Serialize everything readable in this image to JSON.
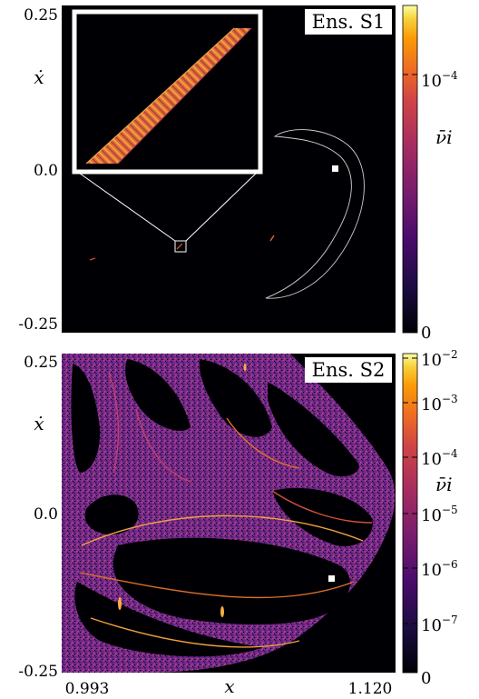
{
  "chart_data": [
    {
      "type": "heatmap",
      "title": "Ens. S1",
      "xlabel": "",
      "ylabel": "ẋ",
      "yticks": [
        "0.25",
        "0.0",
        "-0.25"
      ],
      "ylim": [
        -0.25,
        0.25
      ],
      "colorbar": {
        "label": "ν̄i",
        "scale": "log",
        "tick_labels": [
          {
            "value": 0.0001,
            "base": "10",
            "exp": "−4"
          },
          {
            "value": 0,
            "base": "0",
            "exp": ""
          }
        ]
      },
      "inset": "zoomed view of boxed region near (x≈1.02, ẋ≈-0.11)",
      "marker": {
        "x": 1.1,
        "y": 0.0
      }
    },
    {
      "type": "heatmap",
      "title": "Ens. S2",
      "xlabel": "x",
      "ylabel": "ẋ",
      "xticks": [
        "0.993",
        "1.120"
      ],
      "xlim": [
        0.993,
        1.12
      ],
      "yticks": [
        "0.25",
        "0.0",
        "-0.25"
      ],
      "ylim": [
        -0.25,
        0.25
      ],
      "colorbar": {
        "label": "ν̄i",
        "scale": "log",
        "tick_labels": [
          {
            "value": 0.01,
            "base": "10",
            "exp": "−2"
          },
          {
            "value": 0.001,
            "base": "10",
            "exp": "−3"
          },
          {
            "value": 0.0001,
            "base": "10",
            "exp": "−4"
          },
          {
            "value": 1e-05,
            "base": "10",
            "exp": "−5"
          },
          {
            "value": 1e-06,
            "base": "10",
            "exp": "−6"
          },
          {
            "value": 1e-07,
            "base": "10",
            "exp": "−7"
          },
          {
            "value": 0,
            "base": "0",
            "exp": ""
          }
        ]
      },
      "marker": {
        "x": 1.1,
        "y": -0.065
      }
    }
  ],
  "colors": {
    "background": "#000004",
    "inferno_dark": "#1b0c41",
    "inferno_purple": "#6a176e",
    "inferno_magenta": "#a52c60",
    "inferno_orange": "#ed6925",
    "inferno_yellow": "#fcffa4",
    "outline": "#cfcfcf"
  }
}
